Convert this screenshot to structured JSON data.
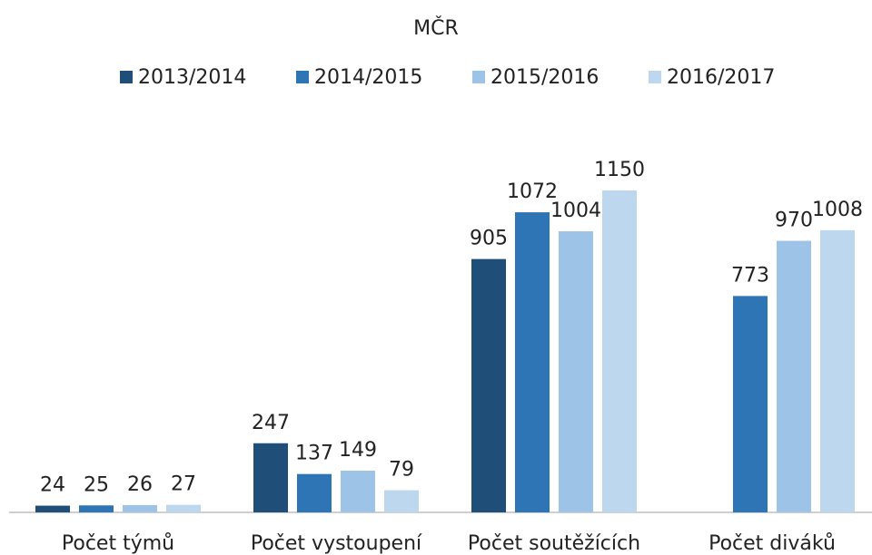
{
  "chart_data": {
    "type": "bar",
    "title": "MČR",
    "categories": [
      "Počet týmů",
      "Počet vystoupení",
      "Počet soutěžících",
      "Počet diváků"
    ],
    "series": [
      {
        "name": "2013/2014",
        "color": "#1f4e79",
        "values": [
          24,
          247,
          905,
          null
        ]
      },
      {
        "name": "2014/2015",
        "color": "#2e75b6",
        "values": [
          25,
          137,
          1072,
          773
        ]
      },
      {
        "name": "2015/2016",
        "color": "#9dc3e6",
        "values": [
          26,
          149,
          1004,
          970
        ]
      },
      {
        "name": "2016/2017",
        "color": "#bdd7ee",
        "values": [
          27,
          79,
          1150,
          1008
        ]
      }
    ],
    "legend": "top"
  }
}
